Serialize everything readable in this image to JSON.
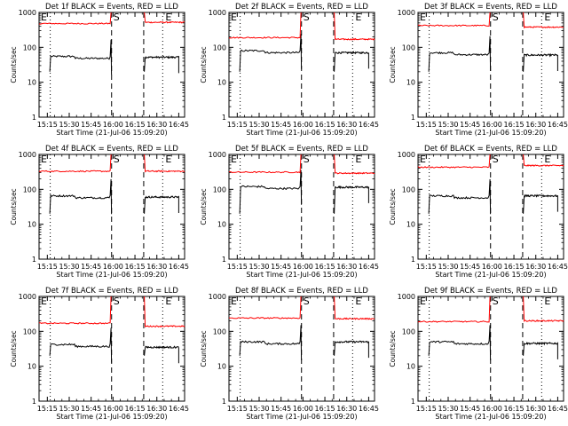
{
  "chart_data": [
    {
      "type": "line",
      "title": "Det 1f BLACK = Events, RED = LLD",
      "ylabel": "Counts/sec",
      "xlabel": "Start Time (21-Jul-06 15:09:20)",
      "yscale": "log",
      "ylim": [
        1,
        1000
      ],
      "yticks": [
        "1",
        "10",
        "100",
        "1000"
      ],
      "xticks": [
        "15:15",
        "15:30",
        "15:45",
        "16:00",
        "16:15",
        "16:30",
        "16:45"
      ],
      "markers": {
        "left": "E",
        "center": "S",
        "right": "E"
      },
      "series": [
        {
          "name": "Events",
          "color": "#000000",
          "level_before": 55,
          "level_after": 52
        },
        {
          "name": "LLD",
          "color": "#ff0000",
          "level_before": 480,
          "level_after": 520
        }
      ]
    },
    {
      "type": "line",
      "title": "Det 2f BLACK = Events, RED = LLD",
      "ylabel": "Counts/sec",
      "xlabel": "Start Time (21-Jul-06 15:09:20)",
      "yscale": "log",
      "ylim": [
        1,
        1000
      ],
      "yticks": [
        "1",
        "10",
        "100",
        "1000"
      ],
      "xticks": [
        "15:15",
        "15:30",
        "15:45",
        "16:00",
        "16:15",
        "16:30",
        "16:45"
      ],
      "markers": {
        "left": "E",
        "center": "S",
        "right": "E"
      },
      "series": [
        {
          "name": "Events",
          "color": "#000000",
          "level_before": 80,
          "level_after": 70
        },
        {
          "name": "LLD",
          "color": "#ff0000",
          "level_before": 190,
          "level_after": 170
        }
      ]
    },
    {
      "type": "line",
      "title": "Det 3f BLACK = Events, RED = LLD",
      "ylabel": "Counts/sec",
      "xlabel": "Start Time (21-Jul-06 15:09:20)",
      "yscale": "log",
      "ylim": [
        1,
        1000
      ],
      "yticks": [
        "1",
        "10",
        "100",
        "1000"
      ],
      "xticks": [
        "15:15",
        "15:30",
        "15:45",
        "16:00",
        "16:15",
        "16:30",
        "16:45"
      ],
      "markers": {
        "left": "E",
        "center": "S",
        "right": "E"
      },
      "series": [
        {
          "name": "Events",
          "color": "#000000",
          "level_before": 70,
          "level_after": 60
        },
        {
          "name": "LLD",
          "color": "#ff0000",
          "level_before": 420,
          "level_after": 380
        }
      ]
    },
    {
      "type": "line",
      "title": "Det 4f BLACK = Events, RED = LLD",
      "ylabel": "Counts/sec",
      "xlabel": "Start Time (21-Jul-06 15:09:20)",
      "yscale": "log",
      "ylim": [
        1,
        1000
      ],
      "yticks": [
        "1",
        "10",
        "100",
        "1000"
      ],
      "xticks": [
        "15:15",
        "15:30",
        "15:45",
        "16:00",
        "16:15",
        "16:30",
        "16:45"
      ],
      "markers": {
        "left": "E",
        "center": "S",
        "right": "E"
      },
      "series": [
        {
          "name": "Events",
          "color": "#000000",
          "level_before": 65,
          "level_after": 60
        },
        {
          "name": "LLD",
          "color": "#ff0000",
          "level_before": 330,
          "level_after": 330
        }
      ]
    },
    {
      "type": "line",
      "title": "Det 5f BLACK = Events, RED = LLD",
      "ylabel": "Counts/sec",
      "xlabel": "Start Time (21-Jul-06 15:09:20)",
      "yscale": "log",
      "ylim": [
        1,
        1000
      ],
      "yticks": [
        "1",
        "10",
        "100",
        "1000"
      ],
      "xticks": [
        "15:15",
        "15:30",
        "15:45",
        "16:00",
        "16:15",
        "16:30",
        "16:45"
      ],
      "markers": {
        "left": "E",
        "center": "S",
        "right": "E"
      },
      "series": [
        {
          "name": "Events",
          "color": "#000000",
          "level_before": 120,
          "level_after": 115
        },
        {
          "name": "LLD",
          "color": "#ff0000",
          "level_before": 310,
          "level_after": 290
        }
      ]
    },
    {
      "type": "line",
      "title": "Det 6f BLACK = Events, RED = LLD",
      "ylabel": "Counts/sec",
      "xlabel": "Start Time (21-Jul-06 15:09:20)",
      "yscale": "log",
      "ylim": [
        1,
        1000
      ],
      "yticks": [
        "1",
        "10",
        "100",
        "1000"
      ],
      "xticks": [
        "15:15",
        "15:30",
        "15:45",
        "16:00",
        "16:15",
        "16:30",
        "16:45"
      ],
      "markers": {
        "left": "E",
        "center": "S",
        "right": "E"
      },
      "series": [
        {
          "name": "Events",
          "color": "#000000",
          "level_before": 65,
          "level_after": 65
        },
        {
          "name": "LLD",
          "color": "#ff0000",
          "level_before": 430,
          "level_after": 480
        }
      ]
    },
    {
      "type": "line",
      "title": "Det 7f BLACK = Events, RED = LLD",
      "ylabel": "Counts/sec",
      "xlabel": "Start Time (21-Jul-06 15:09:20)",
      "yscale": "log",
      "ylim": [
        1,
        1000
      ],
      "yticks": [
        "1",
        "10",
        "100",
        "1000"
      ],
      "xticks": [
        "15:15",
        "15:30",
        "15:45",
        "16:00",
        "16:15",
        "16:30",
        "16:45"
      ],
      "markers": {
        "left": "E",
        "center": "S",
        "right": "E"
      },
      "series": [
        {
          "name": "Events",
          "color": "#000000",
          "level_before": 42,
          "level_after": 35
        },
        {
          "name": "LLD",
          "color": "#ff0000",
          "level_before": 170,
          "level_after": 140
        }
      ]
    },
    {
      "type": "line",
      "title": "Det 8f BLACK = Events, RED = LLD",
      "ylabel": "Counts/sec",
      "xlabel": "Start Time (21-Jul-06 15:09:20)",
      "yscale": "log",
      "ylim": [
        1,
        1000
      ],
      "yticks": [
        "1",
        "10",
        "100",
        "1000"
      ],
      "xticks": [
        "15:15",
        "15:30",
        "15:45",
        "16:00",
        "16:15",
        "16:30",
        "16:45"
      ],
      "markers": {
        "left": "E",
        "center": "S",
        "right": "E"
      },
      "series": [
        {
          "name": "Events",
          "color": "#000000",
          "level_before": 50,
          "level_after": 50
        },
        {
          "name": "LLD",
          "color": "#ff0000",
          "level_before": 240,
          "level_after": 230
        }
      ]
    },
    {
      "type": "line",
      "title": "Det 9f BLACK = Events, RED = LLD",
      "ylabel": "Counts/sec",
      "xlabel": "Start Time (21-Jul-06 15:09:20)",
      "yscale": "log",
      "ylim": [
        1,
        1000
      ],
      "yticks": [
        "1",
        "10",
        "100",
        "1000"
      ],
      "xticks": [
        "15:15",
        "15:30",
        "15:45",
        "16:00",
        "16:15",
        "16:30",
        "16:45"
      ],
      "markers": {
        "left": "E",
        "center": "S",
        "right": "E"
      },
      "series": [
        {
          "name": "Events",
          "color": "#000000",
          "level_before": 50,
          "level_after": 45
        },
        {
          "name": "LLD",
          "color": "#ff0000",
          "level_before": 190,
          "level_after": 200
        }
      ]
    }
  ]
}
